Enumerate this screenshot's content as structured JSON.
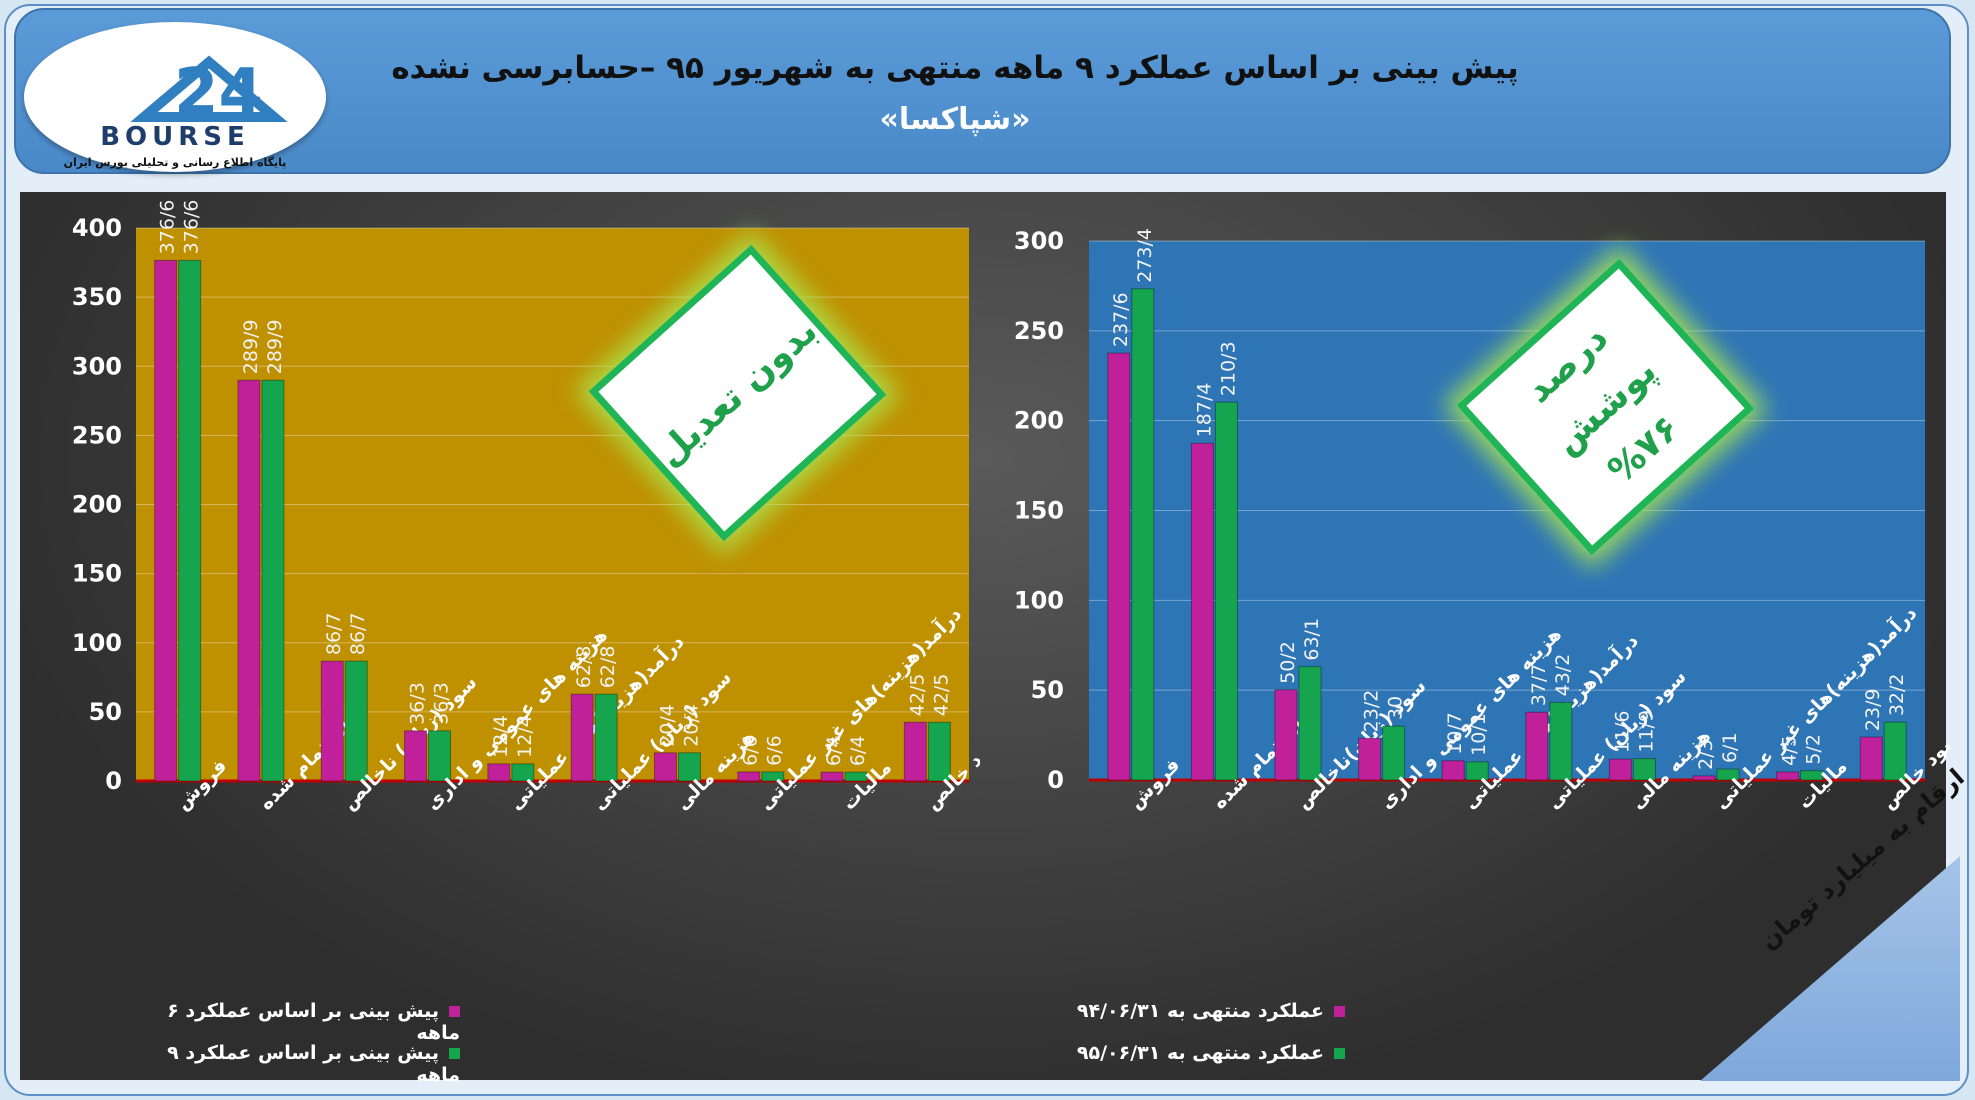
{
  "header": {
    "title": "پیش بینی بر اساس عملکرد ۹ ماهه منتهی به شهریور ۹۵ –حسابرسی نشده",
    "subtitle": "«شپاکسا»",
    "logo_text": "BOURSE",
    "logo_number": "24",
    "logo_tagline": "پایگاه اطلاع رسانی و تحلیلی بورس ایران"
  },
  "note": "ارقام به میلیارد تومان",
  "stamps": {
    "left": "بدون تعدیل",
    "right_line1": "درصد پوشش",
    "right_line2": "%۷۶"
  },
  "chart_data": [
    {
      "type": "bar",
      "background": "#bf9000",
      "ylim": [
        0,
        400
      ],
      "yticks": [
        0,
        50,
        100,
        150,
        200,
        250,
        300,
        350,
        400
      ],
      "categories": [
        "فروش",
        "بهای تمام شده",
        "سود (زیان) ناخالص",
        "هزینه های عمومی و اداری",
        "درآمد(هزینه)های عملیاتی",
        "سود (زیان) عملیاتی",
        "هزینه مالی",
        "درآمد(هزینه)های غیر عملیاتی",
        "مالیات",
        "سود خالص"
      ],
      "series": [
        {
          "name": "پیش بینی بر اساس عملکرد ۶ ماهه",
          "color": "#c0209a",
          "values": [
            376.6,
            289.9,
            86.7,
            36.3,
            12.4,
            62.8,
            20.4,
            6.6,
            6.4,
            42.5
          ],
          "labels": [
            "376/6",
            "289/9",
            "86/7",
            "36/3",
            "12/4",
            "62/8",
            "20/4",
            "6/6",
            "6/4",
            "42/5"
          ]
        },
        {
          "name": "پیش بینی بر اساس عملکرد ۹ ماهه",
          "color": "#14a54e",
          "values": [
            376.6,
            289.9,
            86.7,
            36.3,
            12.4,
            62.8,
            20.4,
            6.6,
            6.4,
            42.5
          ],
          "labels": [
            "376/6",
            "289/9",
            "86/7",
            "36/3",
            "12/4",
            "62/8",
            "20/4",
            "6/6",
            "6/4",
            "42/5"
          ]
        }
      ]
    },
    {
      "type": "bar",
      "background": "#2e75b6",
      "ylim": [
        0,
        300
      ],
      "yticks": [
        0,
        50,
        100,
        150,
        200,
        250,
        300
      ],
      "categories": [
        "فروش",
        "بهای تمام شده",
        "سود (زیان)ناخالص",
        "هزینه های عمومی و اداری",
        "درآمد(هزینه)های عملیاتی",
        "سود (زیان) عملیاتی",
        "هزینه مالی",
        "درآمد(هزینه)های غیر عملیاتی",
        "مالیات",
        "سود خالص"
      ],
      "series": [
        {
          "name": "عملکرد منتهی به ۹۴/۰۶/۳۱",
          "color": "#c0209a",
          "values": [
            237.6,
            187.4,
            50.2,
            23.2,
            10.7,
            37.7,
            11.6,
            2.3,
            4.5,
            23.9
          ],
          "labels": [
            "237/6",
            "187/4",
            "50/2",
            "23/2",
            "10/7",
            "37/7",
            "11/6",
            "2/3",
            "4/5",
            "23/9"
          ]
        },
        {
          "name": "عملکرد منتهی به ۹۵/۰۶/۳۱",
          "color": "#14a54e",
          "values": [
            273.4,
            210.3,
            63.1,
            30,
            10.1,
            43.2,
            11.9,
            6.1,
            5.2,
            32.2
          ],
          "labels": [
            "273/4",
            "210/3",
            "63/1",
            "30",
            "10/1",
            "43/2",
            "11/9",
            "6/1",
            "5/2",
            "32/2"
          ]
        }
      ]
    }
  ]
}
